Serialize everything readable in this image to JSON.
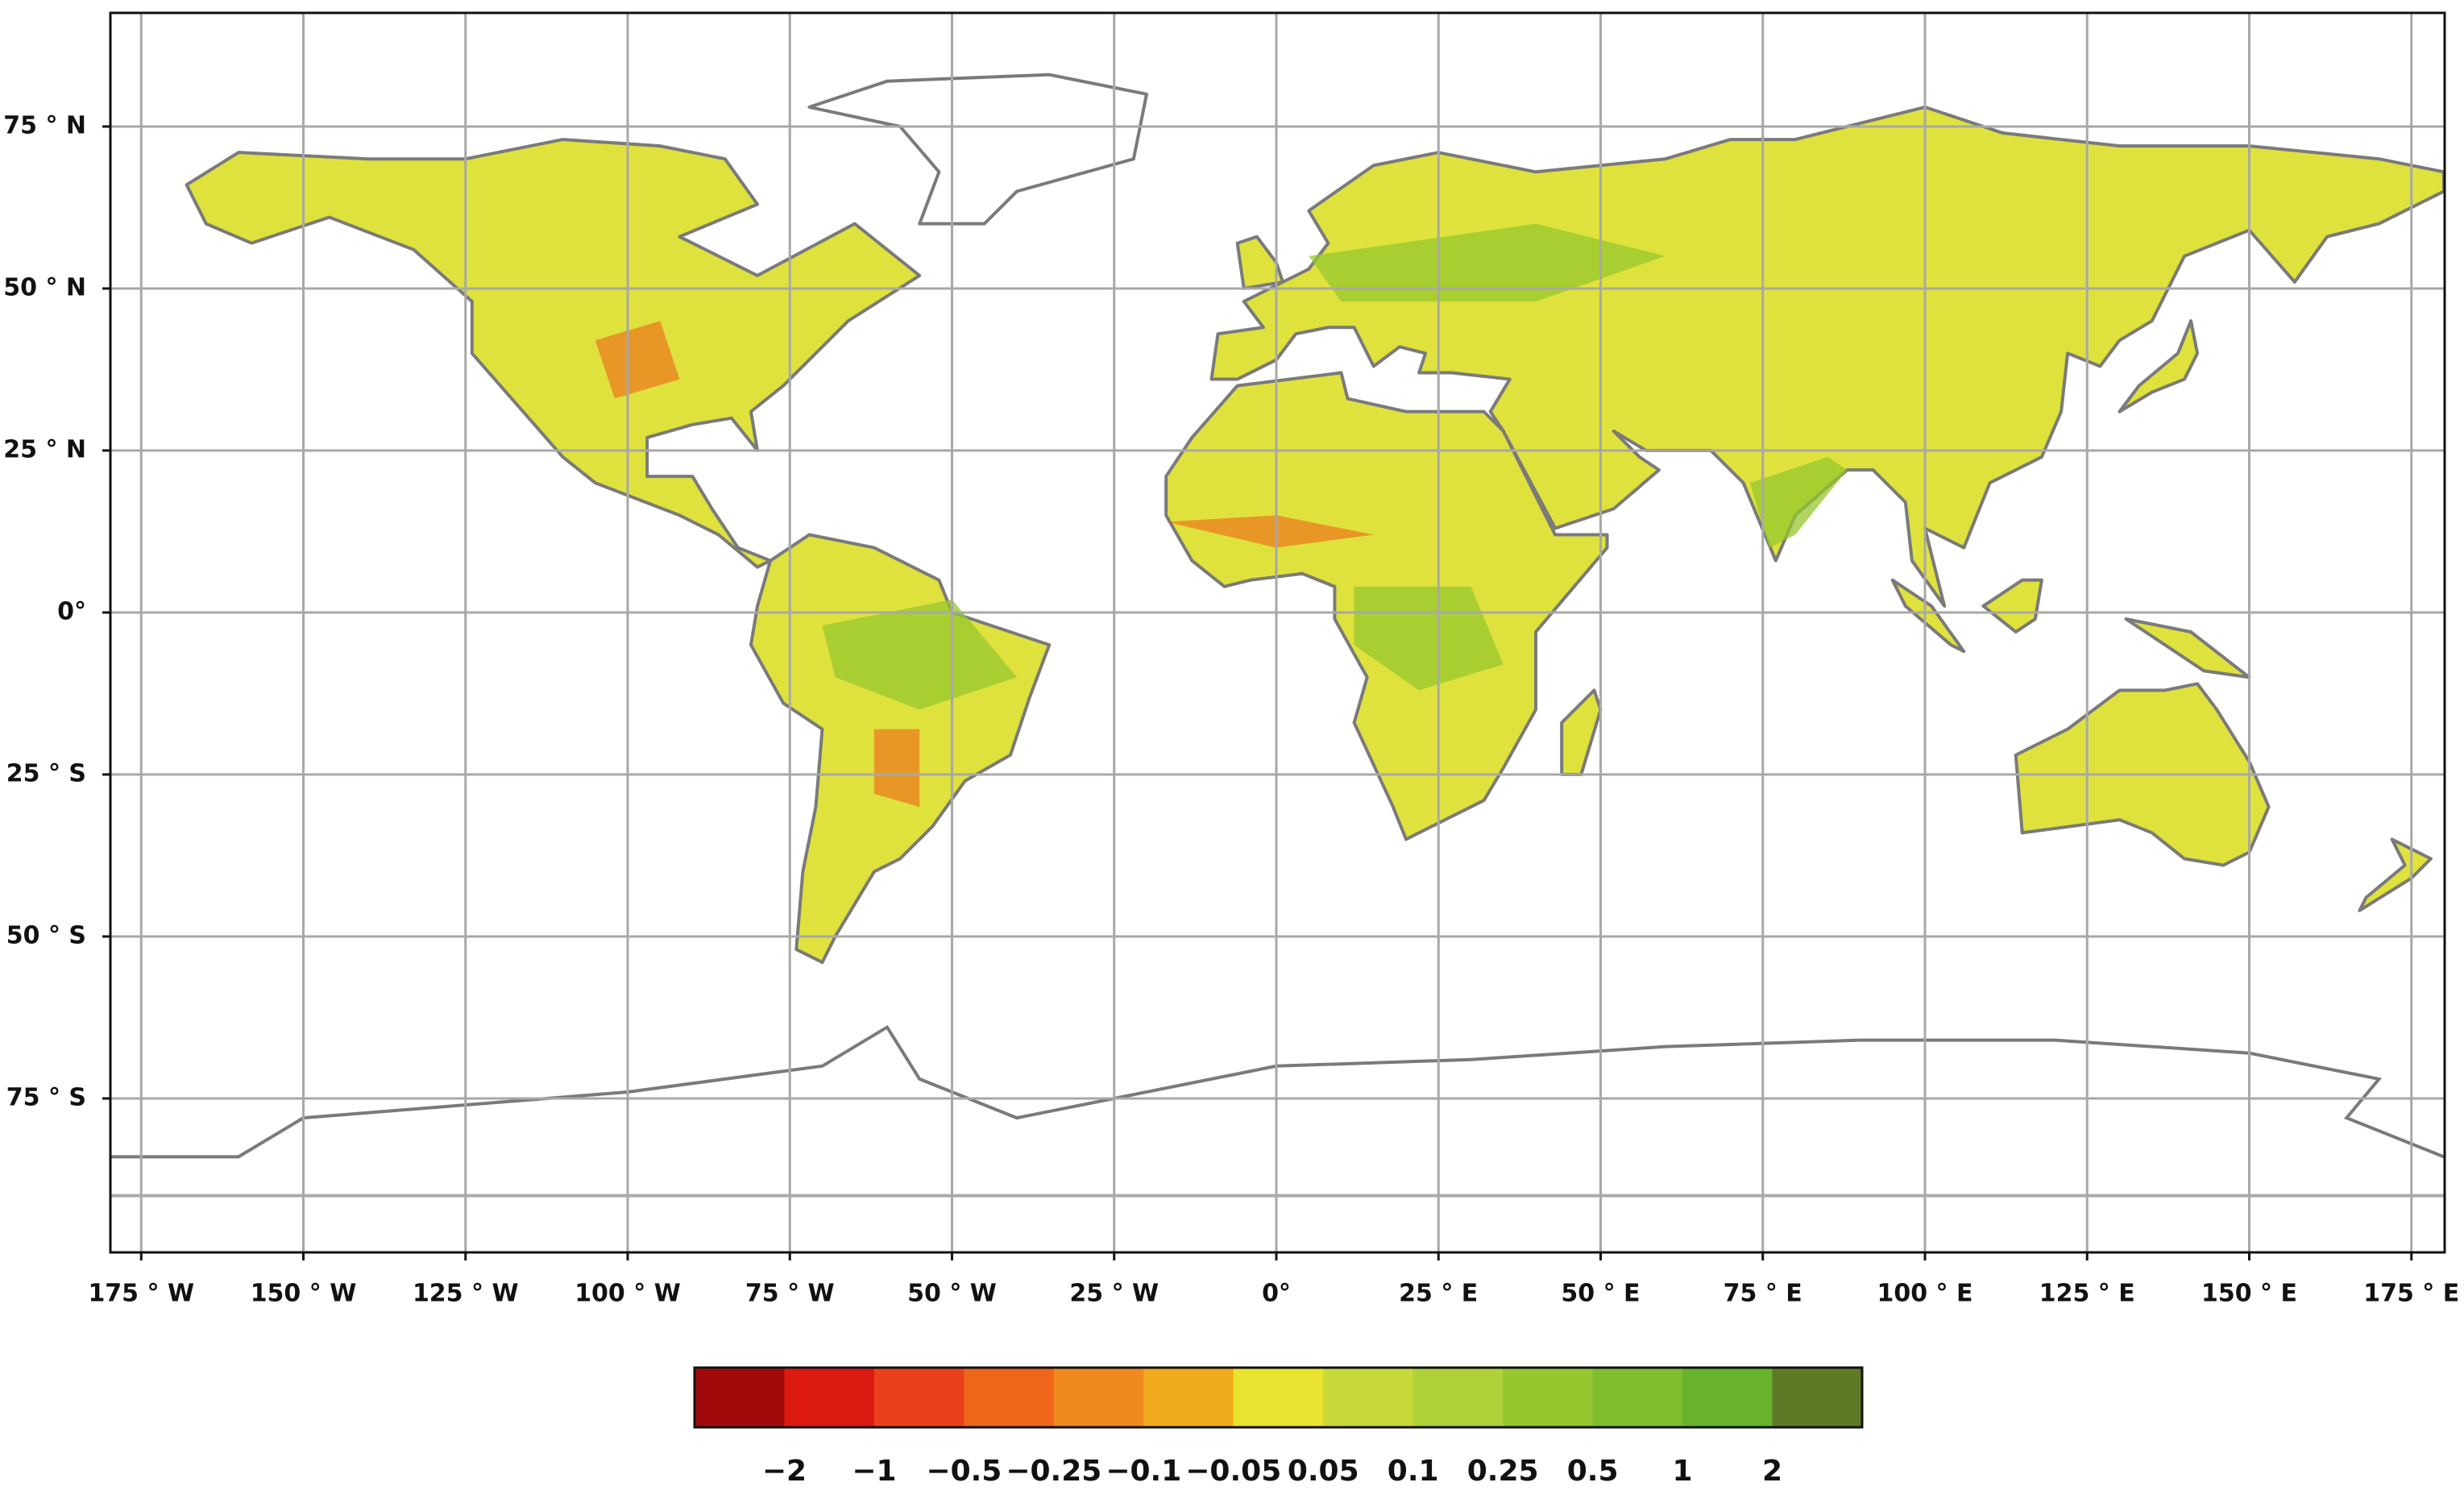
{
  "map": {
    "lon_ticks": [
      {
        "value": -175,
        "label": "175 ° W"
      },
      {
        "value": -150,
        "label": "150 ° W"
      },
      {
        "value": -125,
        "label": "125 ° W"
      },
      {
        "value": -100,
        "label": "100 ° W"
      },
      {
        "value": -75,
        "label": "75 ° W"
      },
      {
        "value": -50,
        "label": "50 ° W"
      },
      {
        "value": -25,
        "label": "25 ° W"
      },
      {
        "value": 0,
        "label": "0°"
      },
      {
        "value": 25,
        "label": "25 ° E"
      },
      {
        "value": 50,
        "label": "50 ° E"
      },
      {
        "value": 75,
        "label": "75 ° E"
      },
      {
        "value": 100,
        "label": "100 ° E"
      },
      {
        "value": 125,
        "label": "125 ° E"
      },
      {
        "value": 150,
        "label": "150 ° E"
      },
      {
        "value": 175,
        "label": "175 ° E"
      }
    ],
    "lat_ticks": [
      {
        "value": 75,
        "label": "75 ° N"
      },
      {
        "value": 50,
        "label": "50 ° N"
      },
      {
        "value": 25,
        "label": "25 ° N"
      },
      {
        "value": 0,
        "label": "0°"
      },
      {
        "value": -25,
        "label": "25 ° S"
      },
      {
        "value": -50,
        "label": "50 ° S"
      },
      {
        "value": -75,
        "label": "75 ° S"
      }
    ],
    "colorbar": {
      "colors": [
        "#a00a0a",
        "#dd1a12",
        "#e8401a",
        "#ee6619",
        "#f08a1f",
        "#f0ab1e",
        "#e8e32e",
        "#c8d93a",
        "#afd13a",
        "#97c72e",
        "#7dbd2e",
        "#68b32e",
        "#5e7a26"
      ],
      "labels": [
        {
          "value": -2,
          "label": "−2"
        },
        {
          "value": -1,
          "label": "−1"
        },
        {
          "value": -0.5,
          "label": "−0.5"
        },
        {
          "value": -0.25,
          "label": "−0.25"
        },
        {
          "value": -0.1,
          "label": "−0.1"
        },
        {
          "value": -0.05,
          "label": "−0.05"
        },
        0.05,
        0.1,
        0.25,
        0.5,
        1,
        2
      ]
    }
  }
}
